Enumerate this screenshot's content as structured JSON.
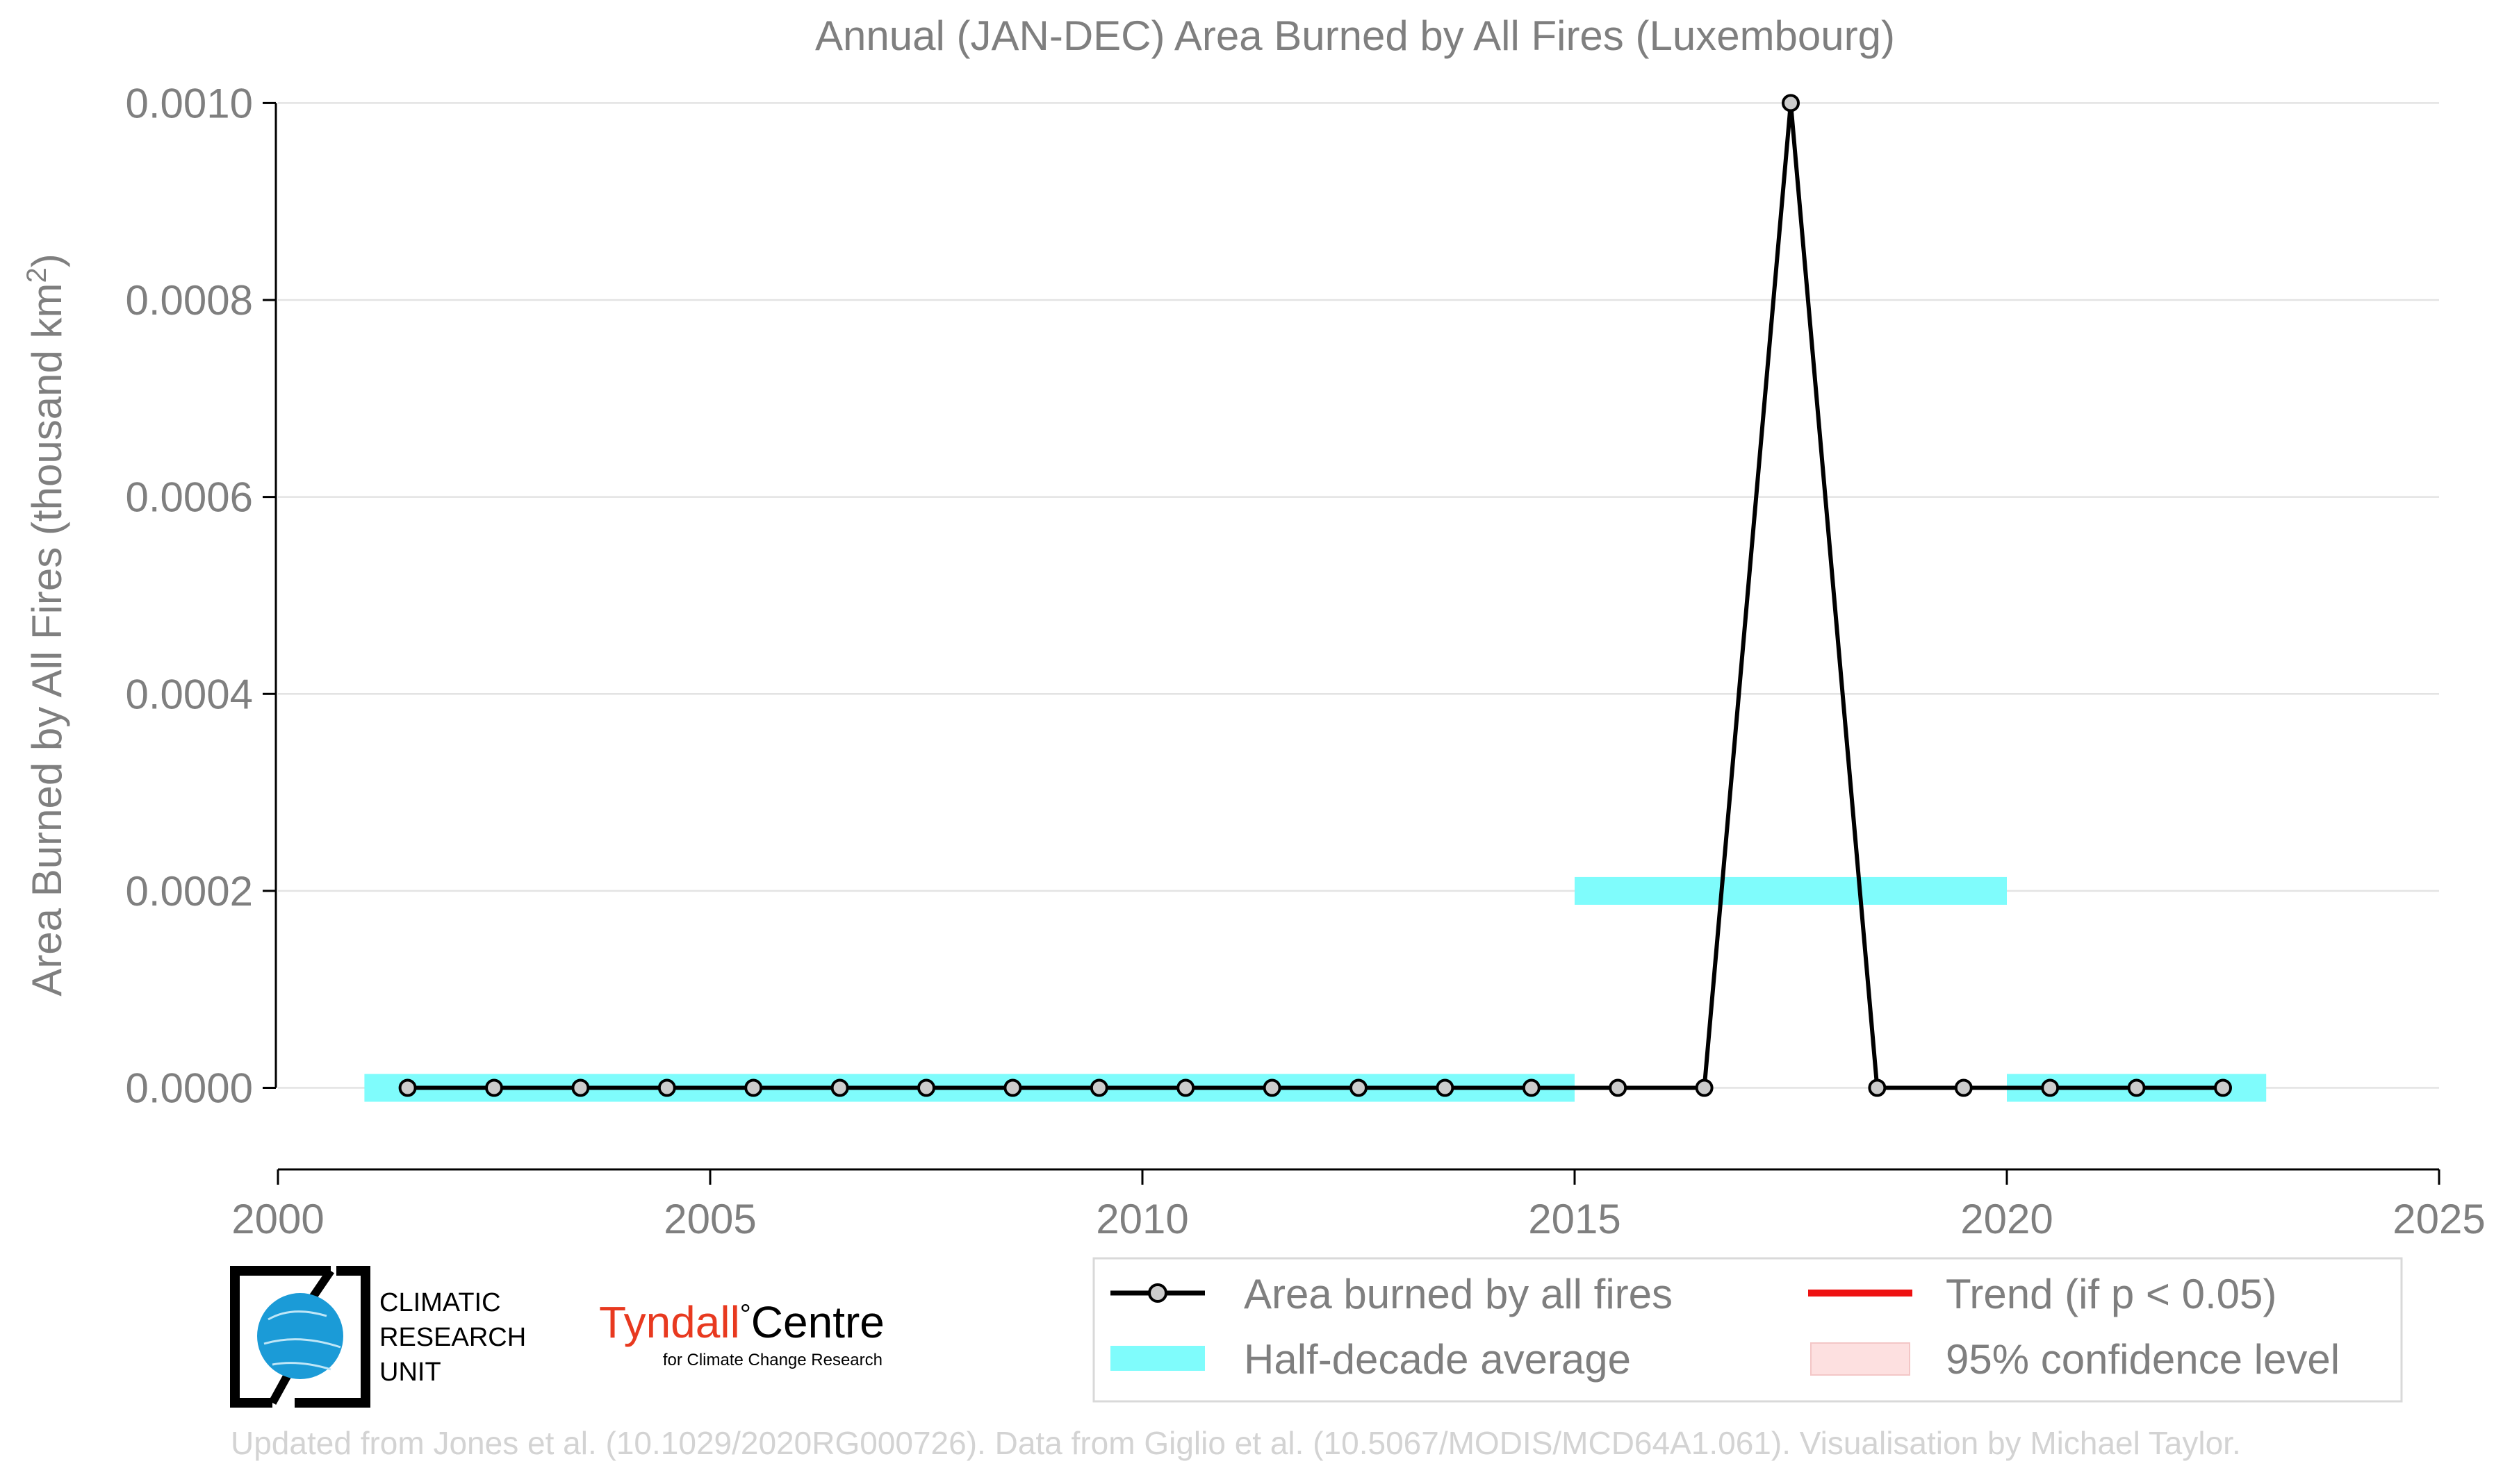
{
  "chart_data": {
    "type": "line",
    "title": "Annual (JAN-DEC) Area Burned by All Fires (Luxembourg)",
    "xlabel": "",
    "ylabel_main": "Area Burned by All Fires (thousand km",
    "ylabel_sup": "2",
    "ylabel_close": ")",
    "xlim": [
      2000,
      2025
    ],
    "ylim": [
      -8e-05,
      0.00102
    ],
    "x_ticks": [
      2000,
      2005,
      2010,
      2015,
      2020,
      2025
    ],
    "x_tick_labels": [
      "2000",
      "2005",
      "2010",
      "2015",
      "2020",
      "2025"
    ],
    "y_ticks": [
      0,
      0.0002,
      0.0004,
      0.0006,
      0.0008,
      0.001
    ],
    "y_tick_labels": [
      "0.0000",
      "0.0002",
      "0.0004",
      "0.0006",
      "0.0008",
      "0.0010"
    ],
    "grid": "horizontal",
    "series": [
      {
        "name": "Area burned by all fires",
        "x": [
          2001.5,
          2002.5,
          2003.5,
          2004.5,
          2005.5,
          2006.5,
          2007.5,
          2008.5,
          2009.5,
          2010.5,
          2011.5,
          2012.5,
          2013.5,
          2014.5,
          2015.5,
          2016.5,
          2017.5,
          2018.5,
          2019.5,
          2020.5,
          2021.5,
          2022.5
        ],
        "values": [
          0,
          0,
          0,
          0,
          0,
          0,
          0,
          0,
          0,
          0,
          0,
          0,
          0,
          0,
          0,
          0,
          0.001,
          0,
          0,
          0,
          0,
          0
        ],
        "color": "#000000",
        "marker_fill": "#cccccc"
      }
    ],
    "half_decade_averages": {
      "name": "Half-decade average",
      "color": "#7ffcfc",
      "segments": [
        {
          "x_start": 2001,
          "x_end": 2015,
          "value": 0
        },
        {
          "x_start": 2015,
          "x_end": 2020,
          "value": 0.0002
        },
        {
          "x_start": 2020,
          "x_end": 2023,
          "value": 0
        }
      ]
    },
    "legend": {
      "placement": "bottom-right",
      "entries": [
        {
          "label": "Area burned by all fires",
          "kind": "line-marker",
          "color": "#000000"
        },
        {
          "label": "Trend (if p < 0.05)",
          "kind": "line",
          "color": "#ee1111"
        },
        {
          "label": "Half-decade average",
          "kind": "band",
          "color": "#7ffcfc"
        },
        {
          "label": "95% confidence level",
          "kind": "band",
          "color": "#fde0e0"
        }
      ]
    }
  },
  "logos": {
    "cru": [
      "CLIMATIC",
      "RESEARCH",
      "UNIT"
    ],
    "tyndall_main": "Tyndall",
    "tyndall_degree": "°",
    "tyndall_centre": "Centre",
    "tyndall_sub": "for Climate Change Research"
  },
  "footer": "Updated from Jones et al. (10.1029/2020RG000726). Data from Giglio et al. (10.5067/MODIS/MCD64A1.061). Visualisation by Michael Taylor.",
  "colors": {
    "text": "#7f7f7f",
    "grid": "#e3e3e3",
    "axis": "#000000",
    "footer": "#d3d3d3",
    "tyndall": "#e8391f",
    "cru_globe": "#1b9bd7"
  }
}
